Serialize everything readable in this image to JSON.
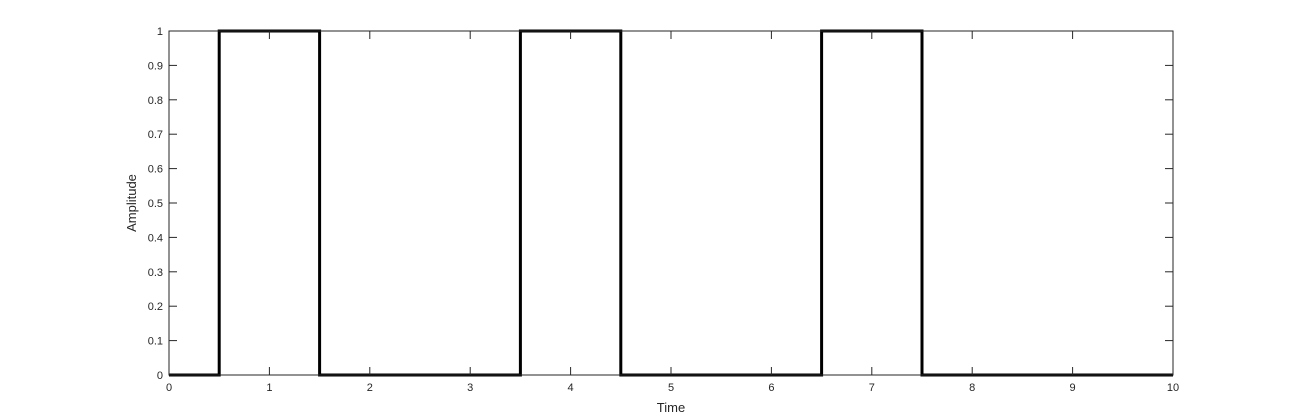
{
  "chart_data": {
    "type": "line",
    "title": "",
    "xlabel": "Time",
    "ylabel": "Amplitude",
    "xlim": [
      0,
      10
    ],
    "ylim": [
      0,
      1
    ],
    "xticks": [
      0,
      1,
      2,
      3,
      4,
      5,
      6,
      7,
      8,
      9,
      10
    ],
    "xtick_labels": [
      "0",
      "1",
      "2",
      "3",
      "4",
      "5",
      "6",
      "7",
      "8",
      "9",
      "10"
    ],
    "yticks": [
      0,
      0.1,
      0.2,
      0.3,
      0.4,
      0.5,
      0.6,
      0.7,
      0.8,
      0.9,
      1
    ],
    "ytick_labels": [
      "0",
      "0.1",
      "0.2",
      "0.3",
      "0.4",
      "0.5",
      "0.6",
      "0.7",
      "0.8",
      "0.9",
      "1"
    ],
    "grid": false,
    "series": [
      {
        "color": "#000000",
        "x": [
          0,
          0.5,
          0.5,
          1.5,
          1.5,
          3.5,
          3.5,
          4.5,
          4.5,
          6.5,
          6.5,
          7.5,
          7.5,
          10
        ],
        "y": [
          0,
          0,
          1,
          1,
          0,
          0,
          1,
          1,
          0,
          0,
          1,
          1,
          0,
          0
        ]
      }
    ]
  }
}
